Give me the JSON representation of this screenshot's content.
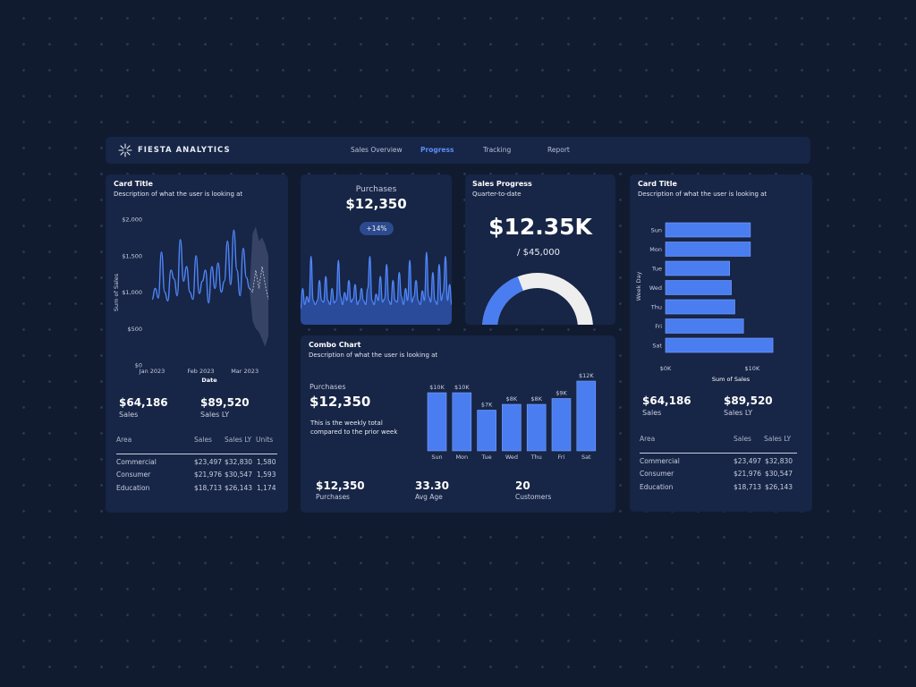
{
  "app": {
    "brand": "FIESTA ANALYTICS"
  },
  "nav": [
    {
      "label": "Sales Overview"
    },
    {
      "label": "Progress"
    },
    {
      "label": "Tracking"
    },
    {
      "label": "Report"
    }
  ],
  "nav_active": "Progress",
  "colors": {
    "accent": "#4a7df0",
    "card": "#172546",
    "background": "#111b30",
    "gauge_track": "#eeeeee"
  },
  "card_left": {
    "title": "Card Title",
    "description": "Description of what the user is looking at",
    "kpis": [
      {
        "value": "$64,186",
        "label": "Sales"
      },
      {
        "value": "$89,520",
        "label": "Sales LY"
      }
    ],
    "table": {
      "headers": [
        "Area",
        "Sales",
        "Sales LY",
        "Units"
      ],
      "rows": [
        [
          "Commercial",
          "$23,497",
          "$32,830",
          "1,580"
        ],
        [
          "Consumer",
          "$21,976",
          "$30,547",
          "1,593"
        ],
        [
          "Education",
          "$18,713",
          "$26,143",
          "1,174"
        ]
      ]
    }
  },
  "card_purchases": {
    "label": "Purchases",
    "value": "$12,350",
    "badge": "+14%"
  },
  "card_progress": {
    "title": "Sales Progress",
    "subtitle": "Quarter-to-date",
    "value": "$12.35K",
    "target": "/ $45,000",
    "progress_fraction": 0.274
  },
  "card_right": {
    "title": "Card Title",
    "description": "Description of what the user is looking at",
    "kpis": [
      {
        "value": "$64,186",
        "label": "Sales"
      },
      {
        "value": "$89,520",
        "label": "Sales LY"
      }
    ],
    "table": {
      "headers": [
        "Area",
        "Sales",
        "Sales LY"
      ],
      "rows": [
        [
          "Commercial",
          "$23,497",
          "$32,830"
        ],
        [
          "Consumer",
          "$21,976",
          "$30,547"
        ],
        [
          "Education",
          "$18,713",
          "$26,143"
        ]
      ]
    }
  },
  "card_combo": {
    "title": "Combo Chart",
    "description": "Description of what the user is looking at",
    "label": "Purchases",
    "value": "$12,350",
    "note": "This is the weekly total compared to the prior week",
    "stats": [
      {
        "value": "$12,350",
        "label": "Purchases"
      },
      {
        "value": "33.30",
        "label": "Avg Age"
      },
      {
        "value": "20",
        "label": "Customers"
      }
    ]
  },
  "chart_data": [
    {
      "id": "sales-line",
      "type": "line",
      "xlabel": "Date",
      "ylabel": "Sum of Sales",
      "ylim": [
        0,
        2000
      ],
      "yticks": [
        "$2,000",
        "$1,500",
        "$1,000",
        "$500",
        "$0"
      ],
      "xticks": [
        "Jan 2023",
        "Feb 2023",
        "Mar 2023"
      ],
      "x": [
        "2023-01-01",
        "2023-01-03",
        "2023-01-05",
        "2023-01-07",
        "2023-01-09",
        "2023-01-11",
        "2023-01-13",
        "2023-01-15",
        "2023-01-17",
        "2023-01-19",
        "2023-01-21",
        "2023-01-23",
        "2023-01-25",
        "2023-01-27",
        "2023-01-29",
        "2023-01-31",
        "2023-02-02",
        "2023-02-04",
        "2023-02-06",
        "2023-02-08",
        "2023-02-10",
        "2023-02-12",
        "2023-02-14",
        "2023-02-16",
        "2023-02-18",
        "2023-02-20",
        "2023-02-22",
        "2023-02-24",
        "2023-02-26",
        "2023-02-28",
        "2023-03-02",
        "2023-03-04"
      ],
      "values": [
        900,
        1050,
        920,
        1550,
        1000,
        880,
        1300,
        1180,
        950,
        1720,
        1150,
        1350,
        1000,
        900,
        1500,
        980,
        1150,
        1300,
        850,
        1350,
        1050,
        1400,
        1000,
        1150,
        1700,
        1100,
        1850,
        1300,
        950,
        1600,
        1200,
        1050
      ],
      "forecast": {
        "x": [
          "2023-03-06",
          "2023-03-08",
          "2023-03-10",
          "2023-03-12",
          "2023-03-14",
          "2023-03-16"
        ],
        "values": [
          1000,
          1300,
          1050,
          1350,
          1100,
          900
        ],
        "upper": [
          1800,
          1900,
          1700,
          1750,
          1650,
          1500
        ],
        "lower": [
          600,
          500,
          450,
          350,
          250,
          400
        ]
      }
    },
    {
      "id": "purchases-area",
      "type": "area",
      "ylim": [
        0,
        1
      ],
      "values": [
        0.2,
        0.45,
        0.25,
        0.35,
        0.28,
        0.85,
        0.3,
        0.25,
        0.3,
        0.55,
        0.3,
        0.28,
        0.6,
        0.3,
        0.25,
        0.45,
        0.27,
        0.3,
        0.8,
        0.35,
        0.25,
        0.4,
        0.3,
        0.55,
        0.28,
        0.32,
        0.5,
        0.25,
        0.3,
        0.45,
        0.3,
        0.25,
        0.45,
        0.85,
        0.3,
        0.25,
        0.38,
        0.3,
        0.6,
        0.28,
        0.32,
        0.75,
        0.3,
        0.25,
        0.55,
        0.3,
        0.28,
        0.65,
        0.35,
        0.25,
        0.45,
        0.3,
        0.8,
        0.28,
        0.35,
        0.55,
        0.3,
        0.25,
        0.42,
        0.3,
        0.9,
        0.35,
        0.28,
        0.65,
        0.3,
        0.25,
        0.75,
        0.3,
        0.4,
        0.85,
        0.3,
        0.5,
        0.25
      ]
    },
    {
      "id": "weekday-bars",
      "type": "bar",
      "orientation": "horizontal",
      "xlabel": "Sum of Sales",
      "ylabel": "Week Day",
      "categories": [
        "Sun",
        "Mon",
        "Tue",
        "Wed",
        "Thu",
        "Fri",
        "Sat"
      ],
      "values": [
        9800,
        9800,
        7400,
        7600,
        8000,
        9000,
        12400
      ],
      "xlim": [
        0,
        12800
      ],
      "xticks": [
        "$0K",
        "$10K"
      ]
    },
    {
      "id": "combo-bars",
      "type": "bar",
      "categories": [
        "Sun",
        "Mon",
        "Tue",
        "Wed",
        "Thu",
        "Fri",
        "Sat"
      ],
      "values": [
        10,
        10,
        7,
        8,
        8,
        9,
        12
      ],
      "data_labels": [
        "$10K",
        "$10K",
        "$7K",
        "$8K",
        "$8K",
        "$9K",
        "$12K"
      ],
      "ylim": [
        0,
        12
      ]
    }
  ]
}
